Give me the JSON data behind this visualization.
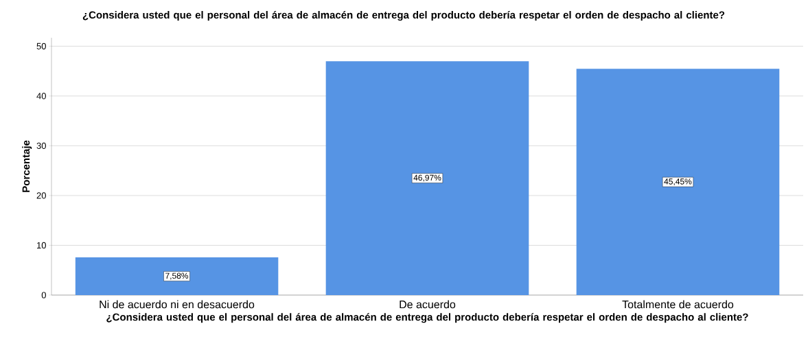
{
  "chart_data": {
    "type": "bar",
    "title": "¿Considera usted que el personal del área de almacén de entrega del producto debería respetar el orden de despacho al cliente?",
    "xlabel": "¿Considera usted que el personal del área de almacén de entrega del producto debería respetar el orden de despacho al cliente?",
    "ylabel": "Porcentaje",
    "categories": [
      "Ni de acuerdo ni en desacuerdo",
      "De acuerdo",
      "Totalmente de acuerdo"
    ],
    "values": [
      7.58,
      46.97,
      45.45
    ],
    "value_labels": [
      "7,58%",
      "46,97%",
      "45,45%"
    ],
    "color": "#5694e4",
    "ylim": [
      0,
      51.7
    ],
    "yticks": [
      0,
      10,
      20,
      30,
      40,
      50
    ],
    "grid": "y"
  }
}
